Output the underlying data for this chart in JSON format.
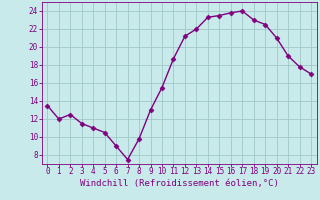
{
  "x": [
    0,
    1,
    2,
    3,
    4,
    5,
    6,
    7,
    8,
    9,
    10,
    11,
    12,
    13,
    14,
    15,
    16,
    17,
    18,
    19,
    20,
    21,
    22,
    23
  ],
  "y": [
    13.5,
    12.0,
    12.5,
    11.5,
    11.0,
    10.5,
    9.0,
    7.5,
    9.8,
    13.0,
    15.5,
    18.7,
    21.2,
    22.0,
    23.3,
    23.5,
    23.8,
    24.0,
    23.0,
    22.5,
    21.0,
    19.0,
    17.8,
    17.0
  ],
  "line_color": "#800080",
  "marker": "D",
  "marker_size": 2.5,
  "bg_color": "#c8eaea",
  "grid_color": "#a0c8c8",
  "xlabel": "Windchill (Refroidissement éolien,°C)",
  "xlim": [
    -0.5,
    23.5
  ],
  "ylim": [
    7,
    25
  ],
  "yticks": [
    8,
    10,
    12,
    14,
    16,
    18,
    20,
    22,
    24
  ],
  "xticks": [
    0,
    1,
    2,
    3,
    4,
    5,
    6,
    7,
    8,
    9,
    10,
    11,
    12,
    13,
    14,
    15,
    16,
    17,
    18,
    19,
    20,
    21,
    22,
    23
  ],
  "tick_color": "#800080",
  "xlabel_color": "#800080",
  "tick_fontsize": 5.5,
  "xlabel_fontsize": 6.5
}
